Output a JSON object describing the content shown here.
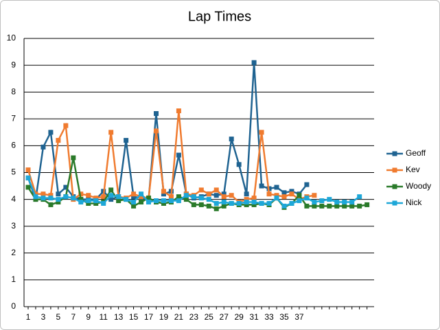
{
  "chart_data": {
    "type": "line",
    "title": "Lap Times",
    "categories": [
      "1",
      null,
      "3",
      null,
      "5",
      null,
      "7",
      null,
      "9",
      null,
      "11",
      null,
      "13",
      null,
      "15",
      null,
      "17",
      null,
      "19",
      null,
      "21",
      null,
      "23",
      null,
      "25",
      null,
      "27",
      null,
      "29",
      null,
      "31",
      null,
      "33",
      null,
      "35",
      null,
      "37",
      null,
      null,
      null,
      null,
      null,
      null,
      null,
      null,
      null
    ],
    "ylim": [
      0,
      10
    ],
    "yticks": [
      0,
      1,
      2,
      3,
      4,
      5,
      6,
      7,
      8,
      9,
      10
    ],
    "grid": true,
    "legend": "right",
    "series": [
      {
        "name": "Geoff",
        "color": "#1f6391",
        "values": [
          4.8,
          4.0,
          5.95,
          6.5,
          4.2,
          4.45,
          4.1,
          4.0,
          4.0,
          4.0,
          4.3,
          4.0,
          4.1,
          6.2,
          4.1,
          4.05,
          4.0,
          7.2,
          4.2,
          4.3,
          5.65,
          4.2,
          4.05,
          4.1,
          4.2,
          4.15,
          4.2,
          6.25,
          5.3,
          4.2,
          9.1,
          4.5,
          4.4,
          4.45,
          4.25,
          4.3,
          4.2,
          4.55,
          null,
          null,
          null,
          null,
          null,
          null,
          null,
          null
        ]
      },
      {
        "name": "Kev",
        "color": "#f07b2f",
        "values": [
          5.1,
          4.2,
          4.2,
          4.15,
          6.2,
          6.75,
          4.0,
          4.2,
          4.15,
          4.05,
          4.1,
          6.5,
          4.1,
          4.05,
          4.2,
          4.1,
          4.05,
          6.55,
          4.3,
          4.1,
          7.3,
          4.2,
          4.15,
          4.35,
          4.2,
          4.35,
          4.1,
          4.15,
          3.9,
          4.0,
          4.05,
          6.5,
          4.2,
          4.15,
          4.1,
          4.2,
          4.0,
          4.1,
          4.15,
          null,
          null,
          null,
          null,
          null,
          null,
          null
        ]
      },
      {
        "name": "Woody",
        "color": "#2a7a2a",
        "values": [
          4.45,
          4.0,
          4.0,
          3.8,
          3.9,
          4.1,
          5.55,
          4.0,
          3.85,
          3.85,
          3.9,
          4.35,
          3.95,
          4.0,
          3.75,
          3.9,
          4.05,
          3.9,
          3.85,
          3.9,
          4.1,
          4.0,
          3.8,
          3.8,
          3.75,
          3.65,
          3.75,
          3.85,
          3.8,
          3.8,
          3.8,
          3.85,
          3.8,
          4.05,
          3.7,
          3.85,
          4.15,
          3.75,
          3.75,
          3.75,
          3.75,
          3.75,
          3.75,
          3.75,
          3.75,
          3.8
        ]
      },
      {
        "name": "Nick",
        "color": "#1ea7d8",
        "values": [
          4.8,
          4.1,
          4.05,
          4.05,
          4.0,
          4.1,
          4.05,
          3.9,
          3.95,
          3.95,
          3.85,
          4.15,
          4.1,
          4.0,
          3.9,
          4.2,
          3.9,
          3.95,
          3.95,
          3.95,
          3.95,
          4.15,
          4.1,
          4.05,
          4.0,
          3.85,
          3.9,
          3.85,
          3.85,
          3.9,
          3.9,
          3.85,
          3.85,
          4.05,
          3.75,
          3.85,
          3.95,
          4.05,
          3.9,
          3.95,
          4.0,
          3.9,
          3.9,
          3.9,
          4.1,
          null
        ]
      }
    ]
  }
}
